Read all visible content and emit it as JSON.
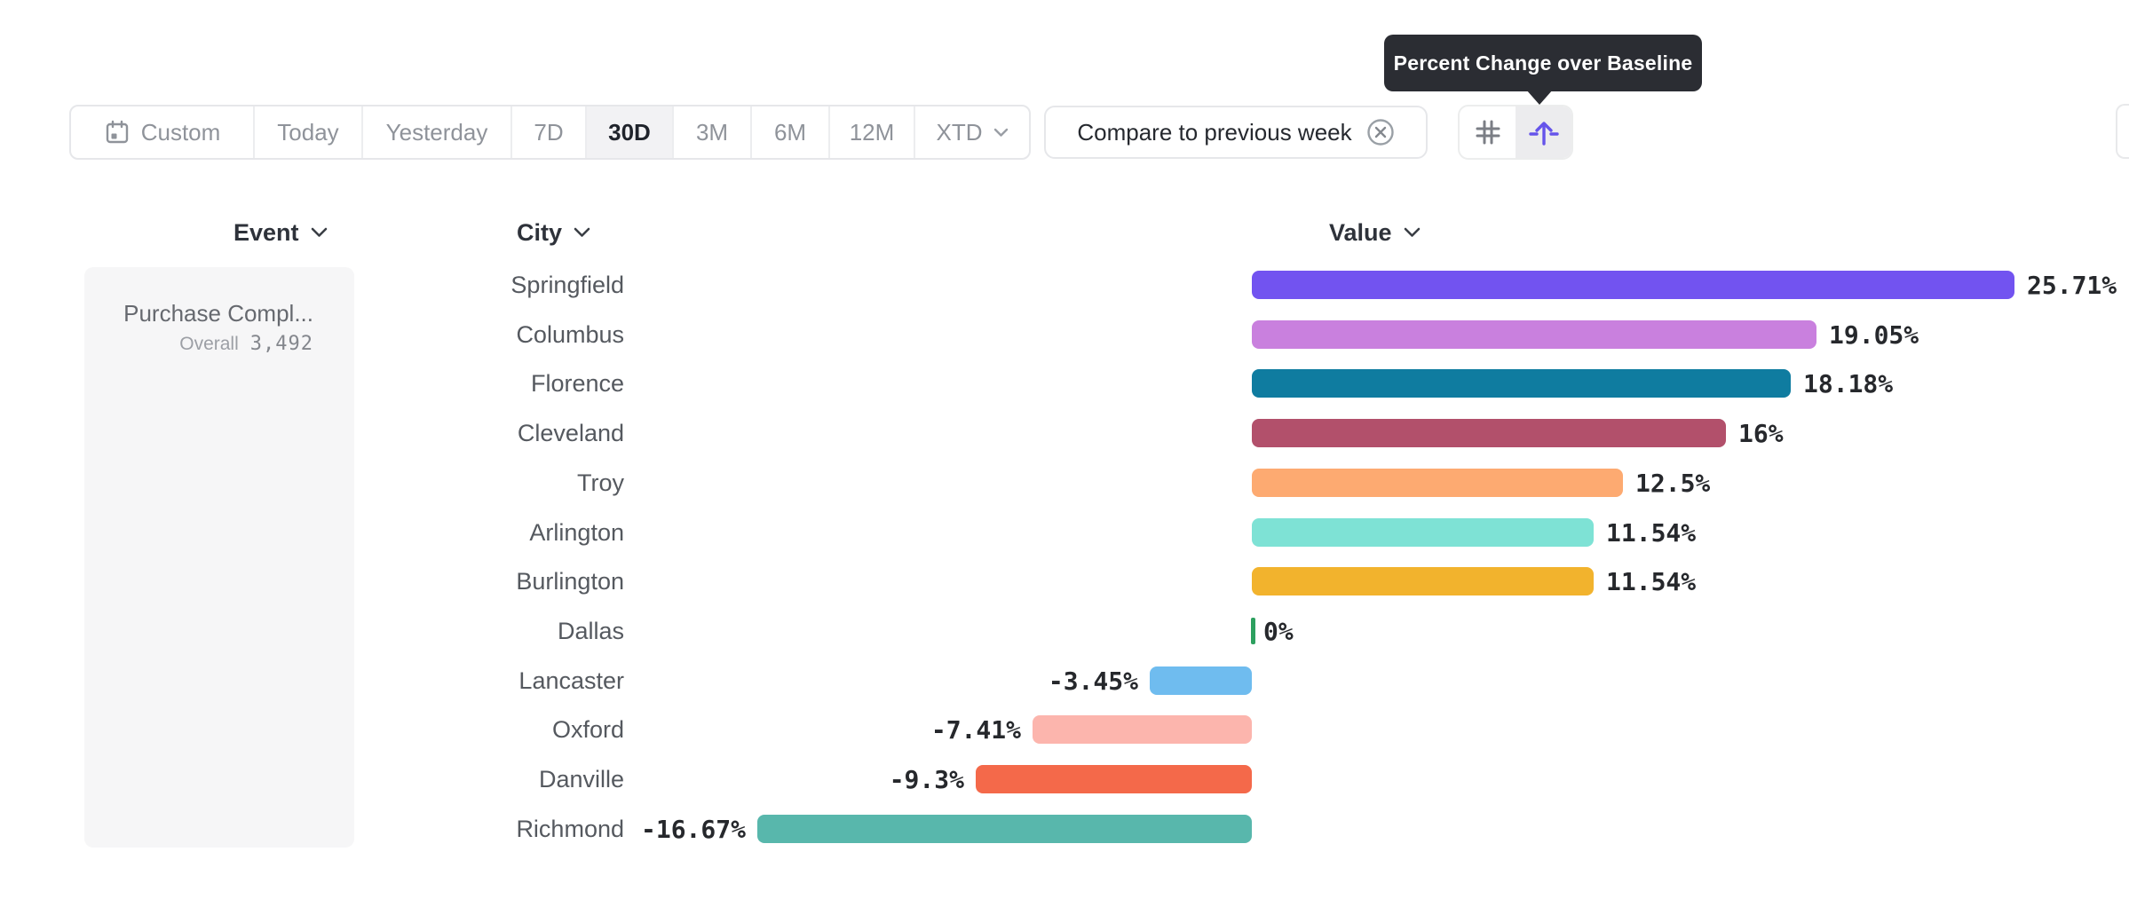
{
  "tooltip": {
    "text": "Percent Change over Baseline"
  },
  "toolbar": {
    "date_ranges": [
      {
        "label": "Custom",
        "selected": false,
        "icon": "calendar-icon"
      },
      {
        "label": "Today",
        "selected": false
      },
      {
        "label": "Yesterday",
        "selected": false
      },
      {
        "label": "7D",
        "selected": false
      },
      {
        "label": "30D",
        "selected": true
      },
      {
        "label": "3M",
        "selected": false
      },
      {
        "label": "6M",
        "selected": false
      },
      {
        "label": "12M",
        "selected": false
      },
      {
        "label": "XTD",
        "selected": false,
        "icon": "chevron-down-icon"
      }
    ],
    "compare": {
      "label": "Compare to previous week",
      "close_icon": "close-circle-icon"
    },
    "view_toggle": {
      "options": [
        {
          "icon": "grid-icon",
          "selected": false
        },
        {
          "icon": "percent-change-baseline-icon",
          "selected": true,
          "tooltip": "Percent Change over Baseline"
        }
      ],
      "accent_color": "#6554EA"
    }
  },
  "columns": {
    "event_label": "Event",
    "city_label": "City",
    "value_label": "Value"
  },
  "event_panel": {
    "event_name": "Purchase Compl...",
    "overall_label": "Overall",
    "overall_value": "3,492"
  },
  "chart_data": {
    "type": "bar",
    "orientation": "horizontal",
    "unit": "percent",
    "xlabel": "Value",
    "xlim": [
      -16.67,
      25.71
    ],
    "baseline": 0,
    "categories": [
      "Springfield",
      "Columbus",
      "Florence",
      "Cleveland",
      "Troy",
      "Arlington",
      "Burlington",
      "Dallas",
      "Lancaster",
      "Oxford",
      "Danville",
      "Richmond"
    ],
    "values": [
      25.71,
      19.05,
      18.18,
      16,
      12.5,
      11.54,
      11.54,
      0,
      -3.45,
      -7.41,
      -9.3,
      -16.67
    ],
    "labels": [
      "25.71%",
      "19.05%",
      "18.18%",
      "16%",
      "12.5%",
      "11.54%",
      "11.54%",
      "0%",
      "-3.45%",
      "-7.41%",
      "-9.3%",
      "-16.67%"
    ],
    "colors": [
      "#7253F0",
      "#C980DE",
      "#0F7CA0",
      "#B2506B",
      "#FDAA71",
      "#7EE2D5",
      "#F2B32D",
      "#2DA05F",
      "#6FBCEF",
      "#FCB5AD",
      "#F4694A",
      "#58B7AC"
    ],
    "zero_marker_color": "#2DA05F"
  }
}
